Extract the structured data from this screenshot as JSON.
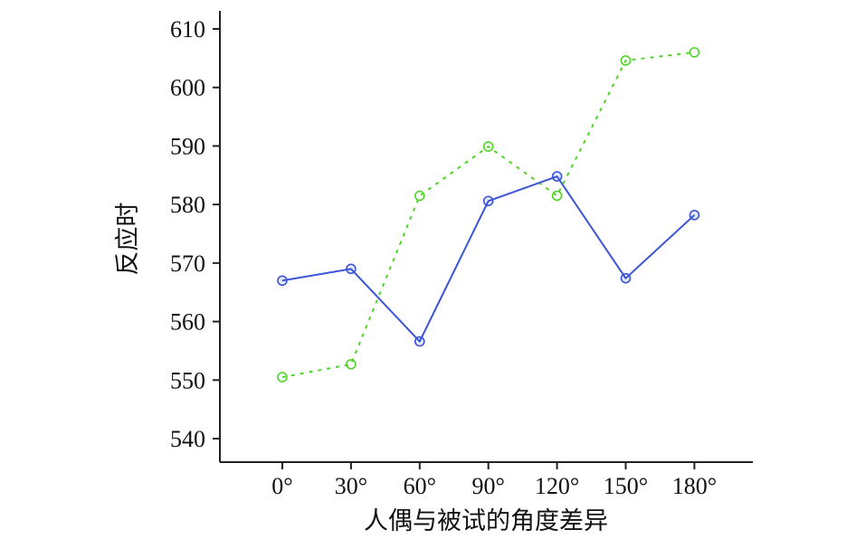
{
  "chart_data": {
    "type": "line",
    "title": "",
    "xlabel": "人偶与被试的角度差异",
    "ylabel": "反应时",
    "categories": [
      "0°",
      "30°",
      "60°",
      "90°",
      "120°",
      "150°",
      "180°"
    ],
    "ylim": [
      535,
      615
    ],
    "yticks": [
      540,
      550,
      560,
      570,
      580,
      590,
      600,
      610
    ],
    "ytick_labels": [
      "540",
      "550",
      "560",
      "570",
      "580",
      "590",
      "600",
      "610"
    ],
    "grid": false,
    "series": [
      {
        "name": "series-solid",
        "style": "solid",
        "color": "#3a55d6",
        "values": [
          567.0,
          569.0,
          556.6,
          580.6,
          584.8,
          567.4,
          578.2
        ]
      },
      {
        "name": "series-dotted",
        "style": "dotted",
        "color": "#4fd428",
        "values": [
          550.5,
          552.7,
          581.5,
          589.9,
          581.5,
          604.6,
          606.0
        ]
      }
    ]
  }
}
